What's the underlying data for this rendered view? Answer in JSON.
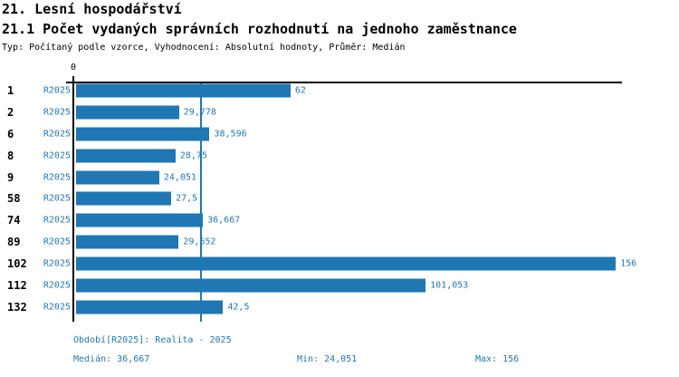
{
  "header": {
    "title": "21. Lesní hospodářství",
    "subtitle": "21.1 Počet vydaných správních rozhodnutí na jednoho zaměstnance",
    "meta": "Typ: Počítaný podle vzorce, Vyhodnocení: Absolutní hodnoty, Průměr: Medián"
  },
  "chart_data": {
    "type": "bar",
    "orientation": "horizontal",
    "title": "21.1 Počet vydaných správních rozhodnutí na jednoho zaměstnance",
    "x_zero_label": "0",
    "xlim": [
      0,
      156
    ],
    "grid": false,
    "median_value": 36.667,
    "median_line_shown": true,
    "series_label": "R2025",
    "categories": [
      "1",
      "2",
      "6",
      "8",
      "9",
      "58",
      "74",
      "89",
      "102",
      "112",
      "132"
    ],
    "values": [
      62,
      29.778,
      38.596,
      28.75,
      24.051,
      27.5,
      36.667,
      29.652,
      156,
      101.053,
      42.5
    ],
    "value_labels": [
      "62",
      "29,778",
      "38,596",
      "28,75",
      "24,051",
      "27,5",
      "36,667",
      "29,652",
      "156",
      "101,053",
      "42,5"
    ],
    "colors": {
      "bar": "#1f77b4",
      "axis": "#000000",
      "median_line": "#1f77b4",
      "value_text": "#1f77b4"
    }
  },
  "footer": {
    "period": "Období[R2025]: Realita - 2025",
    "median": "Medián: 36,667",
    "min": "Min: 24,051",
    "max": "Max: 156"
  }
}
